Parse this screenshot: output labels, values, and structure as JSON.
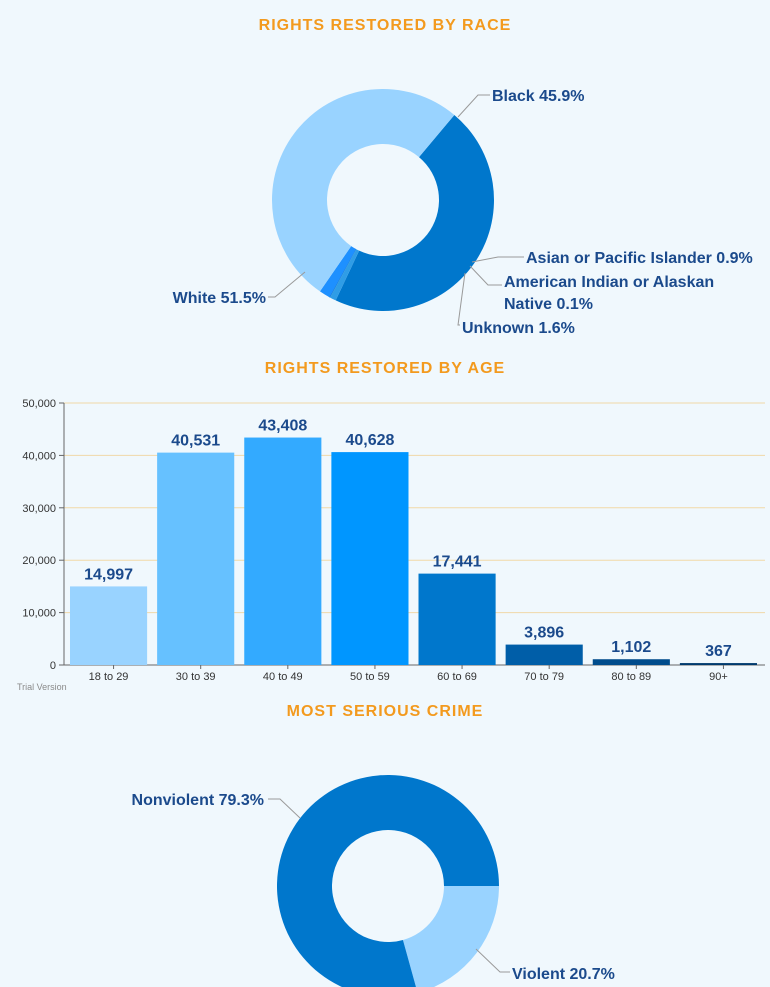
{
  "colors": {
    "title": "#f39a1e",
    "label": "#1b4a8c",
    "grid": "#f1d9a8",
    "white_slice": "#99d3ff",
    "black_slice": "#0077cc",
    "asian_slice": "#2f9de6",
    "native_slice": "#1a7fd8",
    "unknown_slice": "#1e90ff",
    "violent_slice": "#99d3ff",
    "nonviolent_slice": "#0077cc",
    "age_bars": [
      "#99d3ff",
      "#66c1ff",
      "#33aaff",
      "#0096ff",
      "#0077cc",
      "#005ea8",
      "#004c8c",
      "#003a6e"
    ]
  },
  "race": {
    "title": "RIGHTS RESTORED BY RACE"
  },
  "age": {
    "title": "RIGHTS RESTORED BY AGE",
    "watermark": "Trial Version"
  },
  "crime": {
    "title": "MOST SERIOUS CRIME"
  },
  "chart_data": [
    {
      "type": "pie",
      "donut": true,
      "title": "RIGHTS RESTORED BY RACE",
      "slices": [
        {
          "label": "Black 45.9%",
          "value": 45.9
        },
        {
          "label": "Asian or Pacific Islander 0.9%",
          "value": 0.9
        },
        {
          "label": "American Indian or Alaskan Native 0.1%",
          "value": 0.1
        },
        {
          "label": "Unknown 1.6%",
          "value": 1.6
        },
        {
          "label": "White 51.5%",
          "value": 51.5
        }
      ]
    },
    {
      "type": "bar",
      "title": "RIGHTS RESTORED BY AGE",
      "categories": [
        "18 to 29",
        "30 to 39",
        "40 to 49",
        "50 to 59",
        "60 to 69",
        "70 to 79",
        "80 to 89",
        "90+"
      ],
      "values": [
        14997,
        40531,
        43408,
        40628,
        17441,
        3896,
        1102,
        367
      ],
      "value_labels": [
        "14,997",
        "40,531",
        "43,408",
        "40,628",
        "17,441",
        "3,896",
        "1,102",
        "367"
      ],
      "ylim": [
        0,
        50000
      ],
      "yticks": [
        "0",
        "10,000",
        "20,000",
        "30,000",
        "40,000",
        "50,000"
      ],
      "grid": true
    },
    {
      "type": "pie",
      "donut": true,
      "title": "MOST SERIOUS CRIME",
      "slices": [
        {
          "label": "Violent 20.7%",
          "value": 20.7
        },
        {
          "label": "Nonviolent 79.3%",
          "value": 79.3
        }
      ]
    }
  ]
}
